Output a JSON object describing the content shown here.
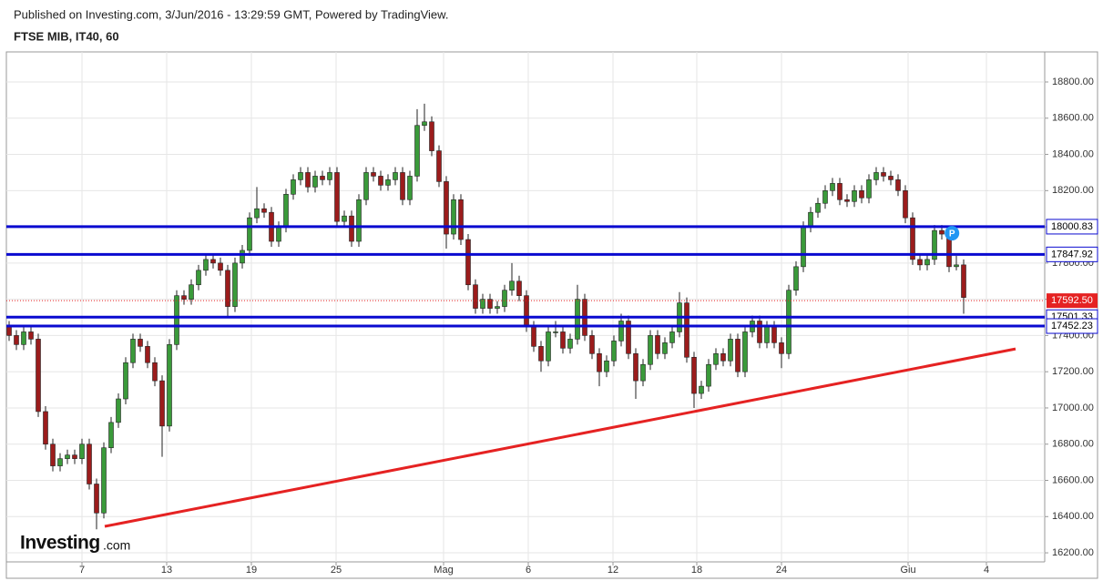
{
  "header": {
    "published": "Published on Investing.com, 3/Jun/2016 - 13:29:59 GMT, Powered by TradingView."
  },
  "chart_data": {
    "type": "candlestick",
    "title": "FTSE MIB, IT40, 60",
    "logo": "Investing",
    "logo_suffix": ".com",
    "up_color": "#3a9a3a",
    "down_color": "#9b1c1c",
    "xlim": [
      -0.375,
      142.125
    ],
    "ylim": [
      16150,
      18966
    ],
    "xticks": [
      {
        "value": 10,
        "label": "7"
      },
      {
        "value": 21.625,
        "label": "13"
      },
      {
        "value": 33.25,
        "label": "19"
      },
      {
        "value": 44.875,
        "label": "25"
      },
      {
        "value": 59.625,
        "label": "Mag"
      },
      {
        "value": 71.25,
        "label": "6"
      },
      {
        "value": 82.875,
        "label": "12"
      },
      {
        "value": 94.375,
        "label": "18"
      },
      {
        "value": 106,
        "label": "24"
      },
      {
        "value": 123.375,
        "label": "Giu"
      },
      {
        "value": 134.125,
        "label": "4"
      }
    ],
    "yticks": [
      {
        "value": 16200,
        "label": "16200.00"
      },
      {
        "value": 16400,
        "label": "16400.00"
      },
      {
        "value": 16600,
        "label": "16600.00"
      },
      {
        "value": 16800,
        "label": "16800.00"
      },
      {
        "value": 17000,
        "label": "17000.00"
      },
      {
        "value": 17200,
        "label": "17200.00"
      },
      {
        "value": 17400,
        "label": "17400.00"
      },
      {
        "value": 17600,
        "label": "17600.00"
      },
      {
        "value": 17800,
        "label": "17800.00"
      },
      {
        "value": 18000,
        "label": "18000.00"
      },
      {
        "value": 18200,
        "label": "18200.00"
      },
      {
        "value": 18400,
        "label": "18400.00"
      },
      {
        "value": 18600,
        "label": "18600.00"
      },
      {
        "value": 18800,
        "label": "18800.00"
      }
    ],
    "grid": true,
    "candles": [
      [
        17450,
        17480,
        17370,
        17400
      ],
      [
        17400,
        17430,
        17320,
        17350
      ],
      [
        17350,
        17450,
        17320,
        17420
      ],
      [
        17420,
        17450,
        17350,
        17380
      ],
      [
        17380,
        17410,
        16950,
        16980
      ],
      [
        16980,
        17010,
        16770,
        16800
      ],
      [
        16800,
        16830,
        16650,
        16680
      ],
      [
        16680,
        16750,
        16650,
        16720
      ],
      [
        16720,
        16770,
        16690,
        16740
      ],
      [
        16740,
        16770,
        16690,
        16720
      ],
      [
        16720,
        16830,
        16690,
        16800
      ],
      [
        16800,
        16830,
        16550,
        16580
      ],
      [
        16580,
        16610,
        16330,
        16420
      ],
      [
        16420,
        16810,
        16390,
        16780
      ],
      [
        16780,
        16950,
        16750,
        16920
      ],
      [
        16920,
        17080,
        16890,
        17050
      ],
      [
        17050,
        17280,
        17020,
        17250
      ],
      [
        17250,
        17410,
        17220,
        17380
      ],
      [
        17380,
        17410,
        17310,
        17340
      ],
      [
        17340,
        17370,
        17220,
        17250
      ],
      [
        17250,
        17280,
        17120,
        17150
      ],
      [
        17150,
        17180,
        16730,
        16900
      ],
      [
        16900,
        17380,
        16870,
        17350
      ],
      [
        17350,
        17650,
        17320,
        17620
      ],
      [
        17620,
        17650,
        17570,
        17600
      ],
      [
        17600,
        17710,
        17570,
        17680
      ],
      [
        17680,
        17790,
        17650,
        17760
      ],
      [
        17760,
        17850,
        17730,
        17820
      ],
      [
        17820,
        17850,
        17770,
        17800
      ],
      [
        17800,
        17830,
        17730,
        17760
      ],
      [
        17760,
        17790,
        17500,
        17560
      ],
      [
        17560,
        17830,
        17530,
        17800
      ],
      [
        17800,
        17900,
        17770,
        17870
      ],
      [
        17870,
        18080,
        17840,
        18050
      ],
      [
        18050,
        18220,
        18020,
        18100
      ],
      [
        18100,
        18130,
        18050,
        18080
      ],
      [
        18080,
        18110,
        17890,
        17920
      ],
      [
        17920,
        18030,
        17890,
        18000
      ],
      [
        18000,
        18210,
        17970,
        18180
      ],
      [
        18180,
        18290,
        18150,
        18260
      ],
      [
        18260,
        18330,
        18230,
        18300
      ],
      [
        18300,
        18330,
        18190,
        18220
      ],
      [
        18220,
        18310,
        18190,
        18280
      ],
      [
        18280,
        18310,
        18230,
        18260
      ],
      [
        18260,
        18330,
        18230,
        18300
      ],
      [
        18300,
        18330,
        18000,
        18030
      ],
      [
        18030,
        18090,
        18000,
        18060
      ],
      [
        18060,
        18090,
        17890,
        17920
      ],
      [
        17920,
        18180,
        17890,
        18150
      ],
      [
        18150,
        18330,
        18120,
        18300
      ],
      [
        18300,
        18330,
        18250,
        18280
      ],
      [
        18280,
        18310,
        18200,
        18230
      ],
      [
        18230,
        18290,
        18200,
        18260
      ],
      [
        18260,
        18330,
        18230,
        18300
      ],
      [
        18300,
        18330,
        18120,
        18150
      ],
      [
        18150,
        18310,
        18120,
        18280
      ],
      [
        18280,
        18650,
        18250,
        18560
      ],
      [
        18560,
        18680,
        18530,
        18580
      ],
      [
        18580,
        18610,
        18390,
        18420
      ],
      [
        18420,
        18450,
        18220,
        18250
      ],
      [
        18250,
        18280,
        17880,
        17960
      ],
      [
        17960,
        18180,
        17930,
        18150
      ],
      [
        18150,
        18180,
        17900,
        17930
      ],
      [
        17930,
        17960,
        17650,
        17680
      ],
      [
        17680,
        17710,
        17520,
        17550
      ],
      [
        17550,
        17630,
        17520,
        17600
      ],
      [
        17600,
        17630,
        17520,
        17550
      ],
      [
        17550,
        17590,
        17520,
        17560
      ],
      [
        17560,
        17680,
        17530,
        17650
      ],
      [
        17650,
        17800,
        17620,
        17700
      ],
      [
        17700,
        17730,
        17590,
        17620
      ],
      [
        17620,
        17650,
        17420,
        17450
      ],
      [
        17450,
        17480,
        17310,
        17340
      ],
      [
        17340,
        17370,
        17200,
        17260
      ],
      [
        17260,
        17450,
        17230,
        17420
      ],
      [
        17420,
        17480,
        17390,
        17420
      ],
      [
        17420,
        17450,
        17300,
        17330
      ],
      [
        17330,
        17410,
        17300,
        17380
      ],
      [
        17380,
        17680,
        17350,
        17600
      ],
      [
        17600,
        17630,
        17370,
        17400
      ],
      [
        17400,
        17430,
        17270,
        17300
      ],
      [
        17300,
        17330,
        17120,
        17200
      ],
      [
        17200,
        17290,
        17170,
        17260
      ],
      [
        17260,
        17400,
        17230,
        17370
      ],
      [
        17370,
        17520,
        17340,
        17480
      ],
      [
        17480,
        17510,
        17270,
        17300
      ],
      [
        17300,
        17330,
        17050,
        17150
      ],
      [
        17150,
        17270,
        17120,
        17240
      ],
      [
        17240,
        17430,
        17210,
        17400
      ],
      [
        17400,
        17430,
        17270,
        17300
      ],
      [
        17300,
        17390,
        17270,
        17360
      ],
      [
        17360,
        17450,
        17330,
        17420
      ],
      [
        17420,
        17640,
        17390,
        17580
      ],
      [
        17580,
        17610,
        17250,
        17280
      ],
      [
        17280,
        17310,
        17000,
        17080
      ],
      [
        17080,
        17150,
        17050,
        17120
      ],
      [
        17120,
        17270,
        17090,
        17240
      ],
      [
        17240,
        17330,
        17210,
        17300
      ],
      [
        17300,
        17330,
        17230,
        17260
      ],
      [
        17260,
        17410,
        17230,
        17380
      ],
      [
        17380,
        17410,
        17170,
        17200
      ],
      [
        17200,
        17450,
        17170,
        17420
      ],
      [
        17420,
        17510,
        17390,
        17480
      ],
      [
        17480,
        17510,
        17330,
        17360
      ],
      [
        17360,
        17480,
        17330,
        17450
      ],
      [
        17450,
        17480,
        17330,
        17360
      ],
      [
        17360,
        17390,
        17220,
        17300
      ],
      [
        17300,
        17680,
        17270,
        17650
      ],
      [
        17650,
        17810,
        17620,
        17780
      ],
      [
        17780,
        18030,
        17750,
        18000
      ],
      [
        18000,
        18110,
        17970,
        18080
      ],
      [
        18080,
        18160,
        18050,
        18130
      ],
      [
        18130,
        18230,
        18100,
        18200
      ],
      [
        18200,
        18270,
        18170,
        18240
      ],
      [
        18240,
        18270,
        18120,
        18150
      ],
      [
        18150,
        18180,
        18110,
        18140
      ],
      [
        18140,
        18230,
        18110,
        18200
      ],
      [
        18200,
        18230,
        18130,
        18160
      ],
      [
        18160,
        18290,
        18130,
        18260
      ],
      [
        18260,
        18330,
        18230,
        18300
      ],
      [
        18300,
        18330,
        18250,
        18280
      ],
      [
        18280,
        18310,
        18230,
        18260
      ],
      [
        18260,
        18290,
        18170,
        18200
      ],
      [
        18200,
        18230,
        18020,
        18050
      ],
      [
        18050,
        18080,
        17790,
        17820
      ],
      [
        17820,
        17850,
        17760,
        17790
      ],
      [
        17790,
        17850,
        17760,
        17820
      ],
      [
        17820,
        18010,
        17790,
        17980
      ],
      [
        17980,
        18010,
        17930,
        17960
      ],
      [
        17960,
        17990,
        17750,
        17780
      ],
      [
        17780,
        17840,
        17760,
        17790
      ],
      [
        17790,
        17820,
        17520,
        17610
      ]
    ],
    "hlines": {
      "values": [
        18000.83,
        17847.92,
        17501.33,
        17452.23
      ],
      "color": "#0a0ad0"
    },
    "last_price": {
      "value": 17592.5,
      "label": "17592.50",
      "color": "#e52222"
    },
    "trendline": {
      "x": [
        13.125,
        138.125
      ],
      "y": [
        16346,
        17326
      ],
      "color": "#e52222"
    },
    "markers": [
      {
        "text": "P",
        "x": 129.4,
        "y": 17965,
        "color": "#2196f3"
      }
    ]
  }
}
